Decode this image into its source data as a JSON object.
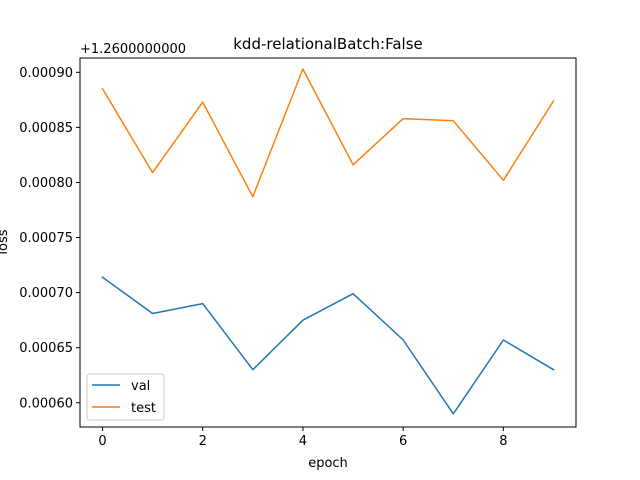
{
  "chart_data": {
    "type": "line",
    "title": "kdd-relationalBatch:False",
    "xlabel": "epoch",
    "ylabel": "loss",
    "offset_label": "+1.2600000000",
    "x": [
      0,
      1,
      2,
      3,
      4,
      5,
      6,
      7,
      8,
      9
    ],
    "xlim": [
      -0.45,
      9.45
    ],
    "ylim": [
      0.000578,
      0.000913
    ],
    "x_ticks": [
      0,
      2,
      4,
      6,
      8
    ],
    "x_tick_labels": [
      "0",
      "2",
      "4",
      "6",
      "8"
    ],
    "y_ticks": [
      0.0006,
      0.00065,
      0.0007,
      0.00075,
      0.0008,
      0.00085,
      0.0009
    ],
    "y_tick_labels": [
      "0.00060",
      "0.00065",
      "0.00070",
      "0.00075",
      "0.00080",
      "0.00085",
      "0.00090"
    ],
    "grid": false,
    "legend_position": "lower-left",
    "series": [
      {
        "name": "val",
        "color": "#1f77b4",
        "values": [
          0.000714,
          0.000681,
          0.00069,
          0.00063,
          0.000675,
          0.000699,
          0.000657,
          0.00059,
          0.000657,
          0.00063
        ]
      },
      {
        "name": "test",
        "color": "#ff7f0e",
        "values": [
          0.000885,
          0.000809,
          0.000873,
          0.000787,
          0.000903,
          0.000816,
          0.000858,
          0.000856,
          0.000802,
          0.000874
        ]
      }
    ]
  }
}
